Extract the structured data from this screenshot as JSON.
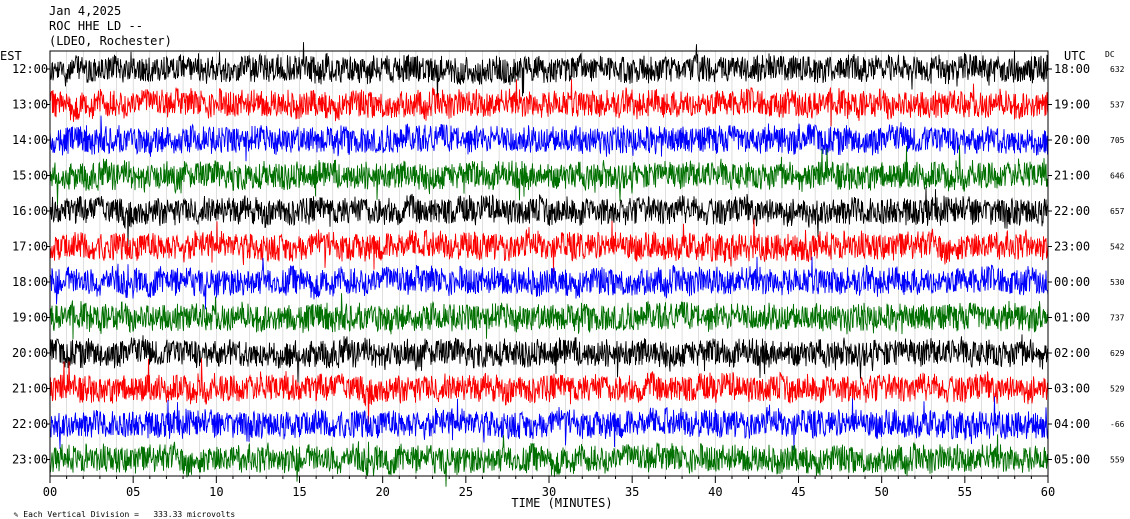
{
  "header": {
    "date": "Jan 4,2025",
    "station": "ROC HHE LD --",
    "network": "(LDEO, Rochester)"
  },
  "chart_data": {
    "type": "line",
    "title": "",
    "xlabel": "TIME (MINUTES)",
    "x_ticks": [
      "00",
      "05",
      "10",
      "15",
      "20",
      "25",
      "30",
      "35",
      "40",
      "45",
      "50",
      "55",
      "60"
    ],
    "xlim": [
      0,
      60
    ],
    "left_axis_label": "EST",
    "right_axis_label": "UTC",
    "dc_label": "DC",
    "trace_colors": [
      "#000000",
      "#ff0000",
      "#0000ff",
      "#007000"
    ],
    "rows": [
      {
        "est": "12:00",
        "utc": "18:00",
        "dc": "632"
      },
      {
        "est": "13:00",
        "utc": "19:00",
        "dc": "537"
      },
      {
        "est": "14:00",
        "utc": "20:00",
        "dc": "705"
      },
      {
        "est": "15:00",
        "utc": "21:00",
        "dc": "646"
      },
      {
        "est": "16:00",
        "utc": "22:00",
        "dc": "657"
      },
      {
        "est": "17:00",
        "utc": "23:00",
        "dc": "542"
      },
      {
        "est": "18:00",
        "utc": "00:00",
        "dc": "530"
      },
      {
        "est": "19:00",
        "utc": "01:00",
        "dc": "737"
      },
      {
        "est": "20:00",
        "utc": "02:00",
        "dc": "629"
      },
      {
        "est": "21:00",
        "utc": "03:00",
        "dc": "529"
      },
      {
        "est": "22:00",
        "utc": "04:00",
        "dc": "-66"
      },
      {
        "est": "23:00",
        "utc": "05:00",
        "dc": "559"
      }
    ],
    "scale_note": "Each Vertical Division =   333.33 microvolts",
    "grid": true
  }
}
